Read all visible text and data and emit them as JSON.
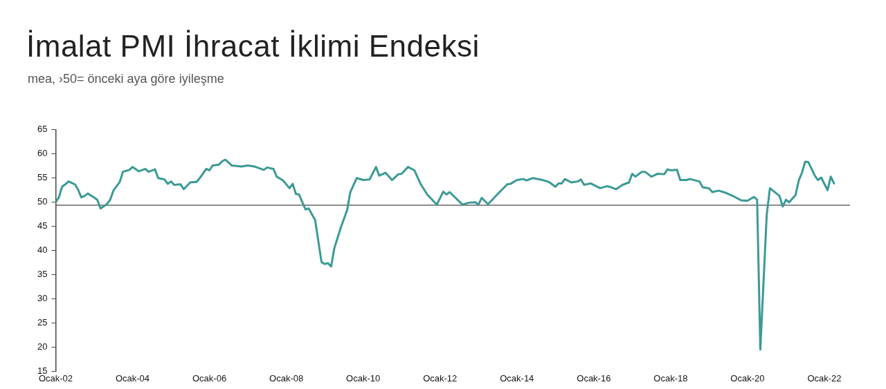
{
  "chart_data": {
    "type": "line",
    "title": "İmalat PMI İhracat İklimi Endeksi",
    "subtitle": "mea, ›50= önceki aya göre iyileşme",
    "legend": false,
    "marker": "none",
    "line_style": "solid",
    "xlim": [
      "2002-01",
      "2022-09"
    ],
    "xticks": [
      {
        "value": "2002-01",
        "label": "Ocak-02"
      },
      {
        "value": "2004-01",
        "label": "Ocak-04"
      },
      {
        "value": "2006-01",
        "label": "Ocak-06"
      },
      {
        "value": "2008-01",
        "label": "Ocak-08"
      },
      {
        "value": "2010-01",
        "label": "Ocak-10"
      },
      {
        "value": "2012-01",
        "label": "Ocak-12"
      },
      {
        "value": "2014-01",
        "label": "Ocak-14"
      },
      {
        "value": "2016-01",
        "label": "Ocak-16"
      },
      {
        "value": "2018-01",
        "label": "Ocak-18"
      },
      {
        "value": "2020-01",
        "label": "Ocak-20"
      },
      {
        "value": "2022-01",
        "label": "Ocak-22"
      }
    ],
    "ylim": [
      15,
      65
    ],
    "yticks": [
      15,
      20,
      25,
      30,
      35,
      40,
      45,
      50,
      55,
      60,
      65
    ],
    "ref_lines": [
      {
        "axis": "y",
        "value": 49.4,
        "color": "#666666"
      }
    ],
    "x": [
      "2002-01",
      "2002-02",
      "2002-03",
      "2002-04",
      "2002-05",
      "2002-07",
      "2002-08",
      "2002-09",
      "2002-10",
      "2002-11",
      "2003-01",
      "2003-02",
      "2003-03",
      "2003-05",
      "2003-06",
      "2003-07",
      "2003-09",
      "2003-10",
      "2003-12",
      "2004-01",
      "2004-03",
      "2004-05",
      "2004-06",
      "2004-08",
      "2004-09",
      "2004-11",
      "2004-12",
      "2005-01",
      "2005-02",
      "2005-04",
      "2005-05",
      "2005-07",
      "2005-09",
      "2005-10",
      "2005-12",
      "2006-01",
      "2006-02",
      "2006-04",
      "2006-05",
      "2006-06",
      "2006-08",
      "2006-11",
      "2007-01",
      "2007-03",
      "2007-06",
      "2007-07",
      "2007-09",
      "2007-10",
      "2007-12",
      "2008-02",
      "2008-03",
      "2008-04",
      "2008-05",
      "2008-06",
      "2008-07",
      "2008-08",
      "2008-10",
      "2008-12",
      "2009-01",
      "2009-02",
      "2009-03",
      "2009-04",
      "2009-06",
      "2009-08",
      "2009-09",
      "2009-11",
      "2010-01",
      "2010-03",
      "2010-05",
      "2010-06",
      "2010-08",
      "2010-10",
      "2010-12",
      "2011-01",
      "2011-03",
      "2011-05",
      "2011-07",
      "2011-09",
      "2011-12",
      "2012-02",
      "2012-03",
      "2012-04",
      "2012-08",
      "2012-10",
      "2012-12",
      "2013-01",
      "2013-02",
      "2013-04",
      "2013-07",
      "2013-10",
      "2013-11",
      "2014-01",
      "2014-03",
      "2014-04",
      "2014-06",
      "2014-09",
      "2014-11",
      "2015-01",
      "2015-02",
      "2015-03",
      "2015-04",
      "2015-06",
      "2015-08",
      "2015-09",
      "2015-10",
      "2015-12",
      "2016-03",
      "2016-05",
      "2016-06",
      "2016-08",
      "2016-10",
      "2016-12",
      "2017-01",
      "2017-02",
      "2017-04",
      "2017-05",
      "2017-07",
      "2017-09",
      "2017-11",
      "2017-12",
      "2018-01",
      "2018-03",
      "2018-04",
      "2018-06",
      "2018-07",
      "2018-10",
      "2018-11",
      "2019-01",
      "2019-02",
      "2019-04",
      "2019-06",
      "2019-09",
      "2019-11",
      "2020-01",
      "2020-03",
      "2020-04",
      "2020-05",
      "2020-07",
      "2020-08",
      "2020-11",
      "2020-12",
      "2021-01",
      "2021-02",
      "2021-04",
      "2021-05",
      "2021-06",
      "2021-07",
      "2021-08",
      "2021-10",
      "2021-11",
      "2021-12",
      "2022-02",
      "2022-03",
      "2022-04"
    ],
    "series": [
      {
        "color": "#3a9a94",
        "values": [
          50.0,
          51.0,
          53.2,
          53.7,
          54.3,
          53.7,
          52.6,
          51.0,
          51.3,
          51.8,
          51.0,
          50.5,
          48.7,
          49.6,
          50.5,
          52.4,
          54.2,
          56.3,
          56.7,
          57.3,
          56.4,
          56.9,
          56.3,
          56.8,
          55.0,
          54.7,
          53.8,
          54.3,
          53.6,
          53.7,
          52.7,
          54.1,
          54.2,
          55.0,
          56.9,
          56.6,
          57.6,
          57.8,
          58.5,
          58.8,
          57.6,
          57.4,
          57.6,
          57.4,
          56.7,
          57.2,
          56.9,
          55.3,
          54.5,
          52.9,
          53.8,
          51.7,
          51.6,
          50.0,
          48.5,
          48.7,
          46.3,
          37.6,
          37.2,
          37.4,
          36.7,
          40.5,
          44.7,
          48.4,
          52.1,
          55.0,
          54.6,
          54.7,
          57.3,
          55.5,
          56.1,
          54.6,
          55.8,
          55.9,
          57.3,
          56.6,
          53.7,
          51.6,
          49.5,
          52.2,
          51.6,
          52.1,
          49.5,
          49.9,
          50.0,
          49.5,
          50.9,
          49.6,
          51.7,
          53.7,
          53.8,
          54.6,
          54.8,
          54.5,
          55.0,
          54.6,
          54.2,
          53.2,
          53.9,
          53.9,
          54.8,
          54.1,
          54.3,
          54.7,
          53.6,
          53.9,
          52.9,
          53.3,
          53.2,
          52.7,
          53.6,
          54.1,
          55.9,
          55.3,
          56.3,
          56.3,
          55.3,
          55.9,
          55.8,
          56.8,
          56.6,
          56.7,
          54.6,
          54.6,
          54.8,
          54.3,
          53.1,
          52.9,
          52.1,
          52.4,
          52.0,
          51.1,
          50.4,
          50.3,
          51.1,
          50.5,
          19.5,
          47.4,
          52.9,
          51.3,
          49.1,
          50.5,
          50.0,
          51.5,
          54.5,
          56.1,
          58.4,
          58.3,
          55.5,
          54.6,
          55.1,
          52.5,
          55.3,
          53.9
        ]
      }
    ]
  }
}
